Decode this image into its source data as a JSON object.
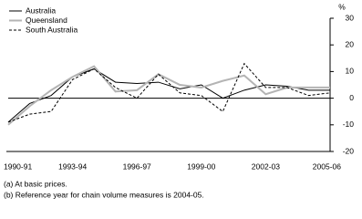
{
  "chart_data": {
    "type": "line",
    "y_unit": "%",
    "categories": [
      "1990-91",
      null,
      null,
      "1993-94",
      null,
      null,
      "1996-97",
      null,
      null,
      "1999-00",
      null,
      null,
      "2002-03",
      null,
      null,
      "2005-06"
    ],
    "series": [
      {
        "name": "Australia",
        "color": "#000000",
        "dash": "solid",
        "width": 1,
        "values": [
          -9,
          -2,
          1,
          8,
          11,
          6,
          5.5,
          6,
          3.5,
          5,
          0,
          3,
          5,
          4.5,
          3,
          3
        ]
      },
      {
        "name": "Queensland",
        "color": "#b4b4b4",
        "dash": "solid",
        "width": 2,
        "values": [
          -10,
          -3,
          3,
          8,
          12,
          2.5,
          3,
          9,
          5,
          4,
          6.5,
          8.5,
          1.5,
          4,
          4,
          4
        ]
      },
      {
        "name": "South Australia",
        "color": "#000000",
        "dash": "dashed",
        "width": 1,
        "values": [
          -9,
          -6,
          -5,
          7,
          11,
          4,
          0,
          9,
          2,
          1,
          -5,
          13,
          4,
          4,
          1,
          2
        ]
      }
    ],
    "ylim": [
      -20,
      30
    ],
    "yticks": [
      -20,
      -10,
      0,
      10,
      20,
      30
    ],
    "footnotes": [
      "(a) At basic prices.",
      "(b) Reference year for chain volume measures is 2004-05."
    ]
  }
}
